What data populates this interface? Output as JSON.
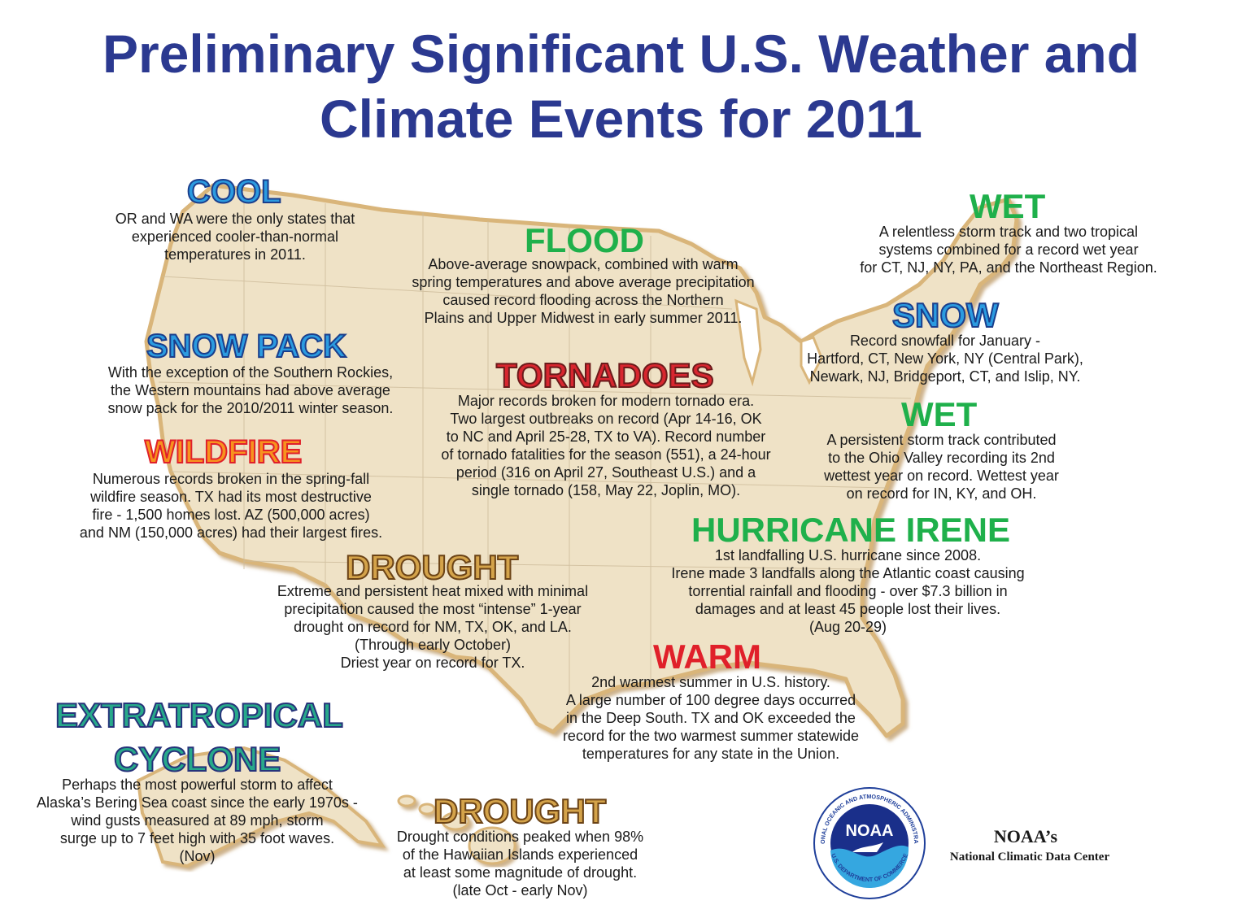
{
  "title": {
    "line1": "Preliminary Significant U.S. Weather and",
    "line2": "Climate Events for 2011"
  },
  "colors": {
    "title": "#2b3990",
    "map_fill": "#efe2c6",
    "map_border": "#d9b57a",
    "blue_heading": "#2b9be0",
    "green_heading": "#1fb04b",
    "red_heading": "#d8262f",
    "brown_heading": "#d4a34a"
  },
  "events": {
    "cool": {
      "heading": "COOL",
      "lines": [
        "OR and WA were the only states that",
        "experienced cooler-than-normal",
        "temperatures in 2011."
      ]
    },
    "flood": {
      "heading": "FLOOD",
      "lines": [
        "Above-average snowpack, combined with warm",
        "spring temperatures and above average precipitation",
        "caused record flooding across the Northern",
        "Plains and Upper Midwest in early summer 2011."
      ]
    },
    "wet_northeast": {
      "heading": "WET",
      "lines": [
        "A relentless storm track and two tropical",
        "systems combined for a record wet year",
        "for CT, NJ, NY, PA, and the Northeast Region."
      ]
    },
    "snow": {
      "heading": "SNOW",
      "lines": [
        "Record snowfall for January -",
        "Hartford, CT, New York, NY (Central Park),",
        "Newark, NJ, Bridgeport, CT, and Islip, NY."
      ]
    },
    "snow_pack": {
      "heading": "SNOW PACK",
      "lines": [
        "With the exception of the Southern Rockies,",
        "the Western mountains had above average",
        "snow pack for the 2010/2011 winter season."
      ]
    },
    "tornadoes": {
      "heading": "TORNADOES",
      "lines": [
        "Major records broken for modern tornado era.",
        "Two largest outbreaks on record (Apr 14-16, OK",
        "to NC and April 25-28, TX to VA). Record number",
        "of tornado fatalities for the season (551), a 24-hour",
        "period (316 on April 27, Southeast U.S.) and a",
        "single tornado (158, May 22, Joplin, MO)."
      ]
    },
    "wet_ohio": {
      "heading": "WET",
      "lines": [
        "A persistent storm track contributed",
        "to the Ohio Valley recording its 2nd",
        "wettest year on record. Wettest year",
        "on record for IN, KY, and OH."
      ]
    },
    "wildfire": {
      "heading": "WILDFIRE",
      "lines": [
        "Numerous records broken in the spring-fall",
        "wildfire season. TX had its most destructive",
        "fire - 1,500 homes lost. AZ (500,000 acres)",
        "and NM (150,000 acres) had their largest fires."
      ]
    },
    "hurricane_irene": {
      "heading": "HURRICANE IRENE",
      "lines": [
        "1st landfalling U.S. hurricane since 2008.",
        "Irene made 3 landfalls along the Atlantic coast causing",
        "torrential rainfall and flooding - over $7.3 billion in",
        "damages and at least 45 people lost their lives.",
        "(Aug 20-29)"
      ]
    },
    "drought_south": {
      "heading": "DROUGHT",
      "lines": [
        "Extreme and persistent heat mixed with minimal",
        "precipitation caused the most “intense” 1-year",
        "drought on record for NM, TX, OK, and LA.",
        "(Through early October)",
        "Driest year on record for TX."
      ]
    },
    "warm": {
      "heading": "WARM",
      "lines": [
        "2nd warmest summer in U.S. history.",
        "A large number of 100 degree days occurred",
        "in the Deep South. TX and OK exceeded the",
        "record for the two warmest summer statewide",
        "temperatures for any state in the Union."
      ]
    },
    "extratropical": {
      "heading_line1": "EXTRATROPICAL",
      "heading_line2": "CYCLONE",
      "lines": [
        "Perhaps the most powerful storm to affect",
        "Alaska’s Bering Sea coast since the early 1970s -",
        "wind gusts measured at 89 mph, storm",
        "surge up to 7 feet high with 35 foot waves.",
        "(Nov)"
      ]
    },
    "drought_hawaii": {
      "heading": "DROUGHT",
      "lines": [
        "Drought conditions peaked when 98%",
        "of the Hawaiian Islands experienced",
        "at least some magnitude of drought.",
        "(late Oct - early Nov)"
      ]
    }
  },
  "logo": {
    "text": "NOAA",
    "ring_text_top": "NATIONAL OCEANIC AND ATMOSPHERIC ADMINISTRATION",
    "ring_text_bottom": "U.S. DEPARTMENT OF COMMERCE"
  },
  "center": {
    "line1": "NOAA’s",
    "line2": "National Climatic Data Center"
  }
}
